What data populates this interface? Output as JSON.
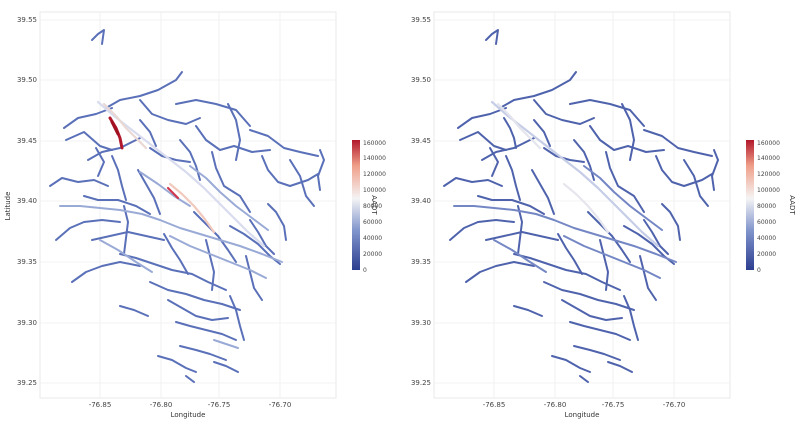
{
  "panels": [
    {
      "xlabel": "Longitude",
      "ylabel": "Latitude",
      "x_ticks": [
        "-76.85",
        "-76.80",
        "-76.75",
        "-76.70"
      ],
      "y_ticks": [
        "39.55",
        "39.50",
        "39.45",
        "39.40",
        "39.35",
        "39.30",
        "39.25"
      ],
      "legend": {
        "title": "AADT",
        "ticks": [
          "160000",
          "140000",
          "120000",
          "100000",
          "80000",
          "60000",
          "40000",
          "20000",
          "0"
        ]
      }
    },
    {
      "xlabel": "Longitude",
      "ylabel": "",
      "x_ticks": [
        "-76.85",
        "-76.80",
        "-76.75",
        "-76.70"
      ],
      "y_ticks": [
        "39.55",
        "39.50",
        "39.45",
        "39.40",
        "39.35",
        "39.30",
        "39.25"
      ],
      "legend": {
        "title": "AADT",
        "ticks": [
          "160000",
          "140000",
          "120000",
          "100000",
          "80000",
          "60000",
          "40000",
          "20000",
          "0"
        ]
      }
    }
  ],
  "colors": {
    "low": "#3b4fa0",
    "mid": "#f2f2f2",
    "high": "#b2182b",
    "road_base": "#5a70b8",
    "grid": "#ececec"
  }
}
